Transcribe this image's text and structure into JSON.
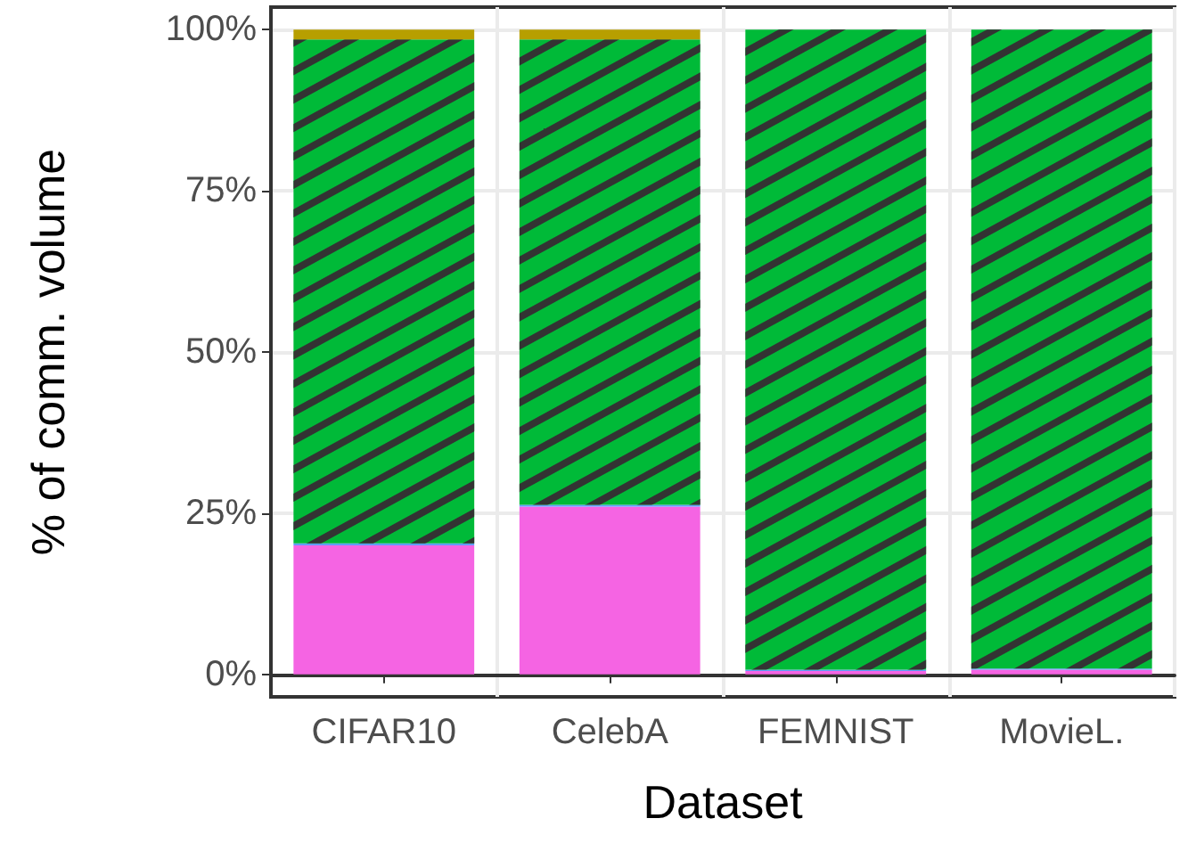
{
  "chart_data": {
    "type": "bar",
    "stacked": true,
    "xlabel": "Dataset",
    "ylabel": "% of comm. volume",
    "categories": [
      "CIFAR10",
      "CelebA",
      "FEMNIST",
      "MovieL."
    ],
    "series": [
      {
        "color": "#f564e3",
        "values": [
          20,
          26,
          0.5,
          0.7
        ]
      },
      {
        "color": "#619cff",
        "values": [
          0.3,
          0.3,
          0.2,
          0.2
        ]
      },
      {
        "color": "#00ba38",
        "values": [
          78.2,
          72.2,
          99.3,
          99.1
        ]
      },
      {
        "color": "#b79f00",
        "values": [
          1.5,
          1.5,
          0,
          0
        ]
      }
    ],
    "ylim": [
      -3.5,
      103.5
    ],
    "yticks": [
      {
        "value": 0,
        "label": "0%"
      },
      {
        "value": 25,
        "label": "25%"
      },
      {
        "value": 50,
        "label": "50%"
      },
      {
        "value": 75,
        "label": "75%"
      },
      {
        "value": 100,
        "label": "100%"
      }
    ],
    "grid": true
  }
}
